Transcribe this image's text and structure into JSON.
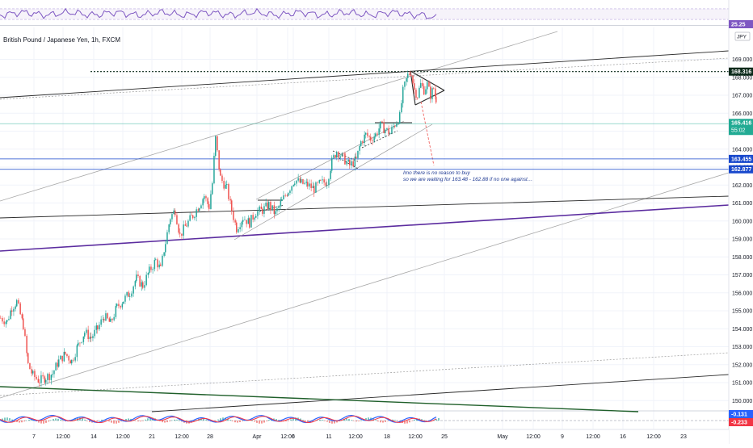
{
  "chart_data": {
    "type": "candlestick",
    "title": "British Pound / Japanese Yen, 1h, FXCM",
    "currency": "JPY",
    "ylim": [
      149.4,
      170.6
    ],
    "y_ticks": [
      "169.000",
      "168.000",
      "167.000",
      "166.000",
      "165.000",
      "164.000",
      "163.000",
      "162.000",
      "161.000",
      "160.000",
      "159.000",
      "158.000",
      "157.000",
      "156.000",
      "155.000",
      "154.000",
      "153.000",
      "152.000",
      "151.000",
      "150.000"
    ],
    "y_tick_values": [
      169,
      168,
      167,
      166,
      165,
      164,
      163,
      162,
      161,
      160,
      159,
      158,
      157,
      156,
      155,
      154,
      153,
      152,
      151,
      150
    ],
    "x_ticks": [
      "7",
      "12:00",
      "14",
      "12:00",
      "21",
      "12:00",
      "28",
      "Apr",
      "12:00",
      "6",
      "11",
      "12:00",
      "18",
      "12:00",
      "25",
      "May",
      "12:00",
      "9",
      "12:00",
      "16",
      "12:00",
      "23"
    ],
    "price_path": [
      [
        0,
        154.6
      ],
      [
        8,
        154.4
      ],
      [
        14,
        155.2
      ],
      [
        20,
        155.5
      ],
      [
        28,
        154.2
      ],
      [
        34,
        152.0
      ],
      [
        40,
        151.4
      ],
      [
        48,
        151.1
      ],
      [
        56,
        151.3
      ],
      [
        64,
        151.5
      ],
      [
        72,
        152.2
      ],
      [
        80,
        152.6
      ],
      [
        88,
        152.2
      ],
      [
        96,
        153.1
      ],
      [
        104,
        153.8
      ],
      [
        112,
        153.5
      ],
      [
        120,
        154.0
      ],
      [
        128,
        154.7
      ],
      [
        136,
        154.3
      ],
      [
        144,
        155.2
      ],
      [
        152,
        155.6
      ],
      [
        160,
        156.0
      ],
      [
        168,
        156.8
      ],
      [
        176,
        156.4
      ],
      [
        184,
        157.2
      ],
      [
        192,
        157.8
      ],
      [
        198,
        157.3
      ],
      [
        204,
        158.8
      ],
      [
        210,
        160.2
      ],
      [
        216,
        160.6
      ],
      [
        222,
        159.2
      ],
      [
        230,
        159.8
      ],
      [
        238,
        160.3
      ],
      [
        246,
        160.9
      ],
      [
        252,
        161.4
      ],
      [
        258,
        160.8
      ],
      [
        262,
        162.1
      ],
      [
        266,
        164.6
      ],
      [
        272,
        162.4
      ],
      [
        280,
        161.8
      ],
      [
        286,
        160.6
      ],
      [
        292,
        159.6
      ],
      [
        300,
        160.2
      ],
      [
        308,
        159.9
      ],
      [
        316,
        160.5
      ],
      [
        324,
        160.6
      ],
      [
        332,
        160.9
      ],
      [
        340,
        160.4
      ],
      [
        348,
        161.1
      ],
      [
        356,
        161.7
      ],
      [
        364,
        162.3
      ],
      [
        372,
        162.1
      ],
      [
        380,
        162.0
      ],
      [
        388,
        161.8
      ],
      [
        396,
        162.1
      ],
      [
        404,
        162.2
      ],
      [
        410,
        163.3
      ],
      [
        416,
        163.9
      ],
      [
        424,
        163.5
      ],
      [
        432,
        163.1
      ],
      [
        440,
        163.4
      ],
      [
        446,
        164.4
      ],
      [
        452,
        164.8
      ],
      [
        458,
        164.6
      ],
      [
        464,
        164.8
      ],
      [
        470,
        165.3
      ],
      [
        476,
        165.1
      ],
      [
        482,
        164.9
      ],
      [
        488,
        165.4
      ],
      [
        494,
        165.8
      ],
      [
        498,
        167.2
      ],
      [
        504,
        168.1
      ],
      [
        508,
        168.3
      ],
      [
        512,
        167.3
      ],
      [
        516,
        167.0
      ],
      [
        520,
        167.6
      ],
      [
        524,
        167.3
      ],
      [
        528,
        167.6
      ],
      [
        532,
        167.0
      ],
      [
        536,
        167.4
      ],
      [
        539,
        166.8
      ],
      [
        541,
        165.4
      ]
    ],
    "levels": [
      {
        "name": "level-168316",
        "value": 168.316,
        "label": "168.316",
        "color": "#0b2a1a",
        "style": "dotted"
      },
      {
        "name": "level-current",
        "value": 165.416,
        "label": "165.416",
        "sublabel": "55:02",
        "color": "#22ab94",
        "style": "solid"
      },
      {
        "name": "level-163455",
        "value": 163.455,
        "label": "163.455",
        "color": "#1848cc",
        "style": "solid"
      },
      {
        "name": "level-162877",
        "value": 162.877,
        "label": "162.877",
        "color": "#1848cc",
        "style": "solid"
      }
    ],
    "annotation_lines": [
      "Imo there is no reason to buy",
      "so we are waiting for 163.48 - 162.88 if no one against…"
    ],
    "rsi": {
      "value_label": "25.25",
      "color": "#7e57c2"
    },
    "macd": {
      "labels": [
        "-0.131",
        "-0.233"
      ],
      "colors": [
        "#2962ff",
        "#f23645"
      ]
    },
    "colors": {
      "up": "#26a69a",
      "down": "#ef5350",
      "grid": "#f0f3fa",
      "purple_trend": "#5b2c9f",
      "green_trend": "#1f5f2a"
    }
  }
}
